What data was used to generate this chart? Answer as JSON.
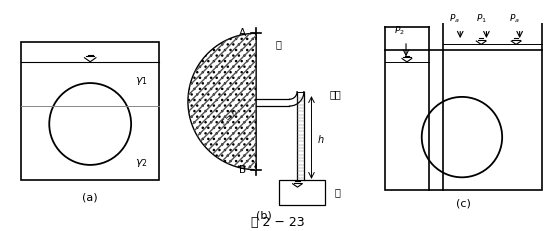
{
  "fig_width": 5.55,
  "fig_height": 2.31,
  "dpi": 100,
  "bg_color": "#ffffff",
  "title": "图 2 − 23",
  "label_a": "(a)",
  "label_b": "(b)",
  "label_c": "(c)"
}
